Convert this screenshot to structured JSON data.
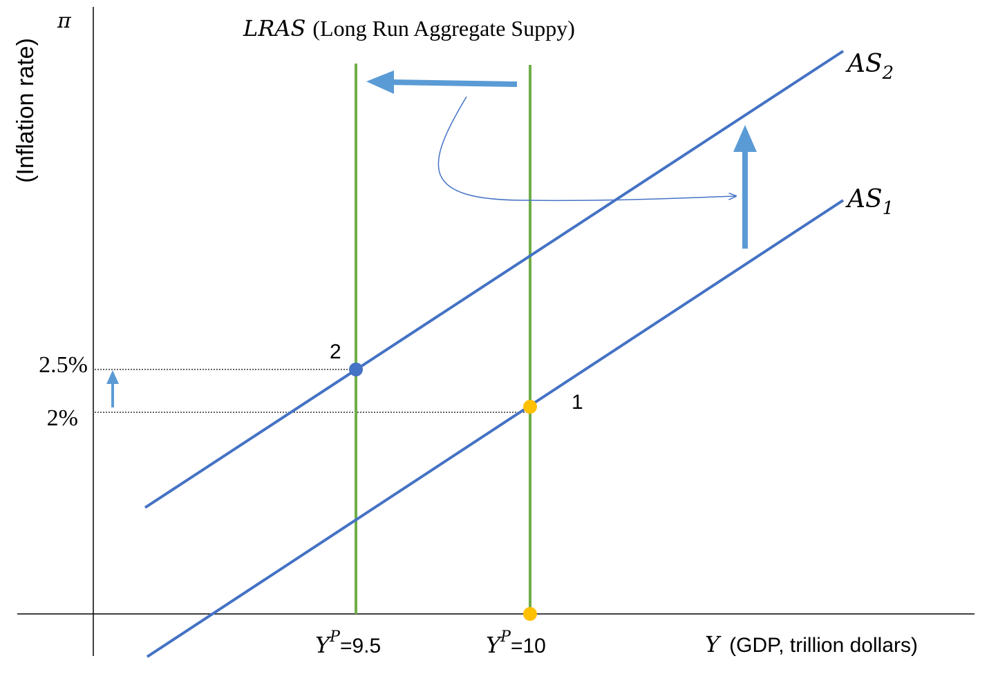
{
  "y_axis": {
    "symbol": "π",
    "label": "(Inflation rate)",
    "ticks": [
      "2.5%",
      "2%"
    ]
  },
  "x_axis": {
    "symbol": "Y",
    "label": "(GDP, trillion dollars)",
    "ticks": [
      {
        "sym": "Y",
        "sup": "P",
        "value": "=9.5"
      },
      {
        "sym": "Y",
        "sup": "P",
        "value": "=10"
      }
    ]
  },
  "lras": {
    "sym": "LRAS",
    "label": "(Long Run Aggregate Suppy)"
  },
  "curves": [
    {
      "name": "AS",
      "sub": "2"
    },
    {
      "name": "AS",
      "sub": "1"
    }
  ],
  "points": [
    {
      "label": "1"
    },
    {
      "label": "2"
    }
  ],
  "colors": {
    "as_curve": "#4472C4",
    "lras_line": "#70AD47",
    "arrow": "#5B9BD5",
    "point_1": "#FFC000",
    "point_2": "#4472C4"
  }
}
